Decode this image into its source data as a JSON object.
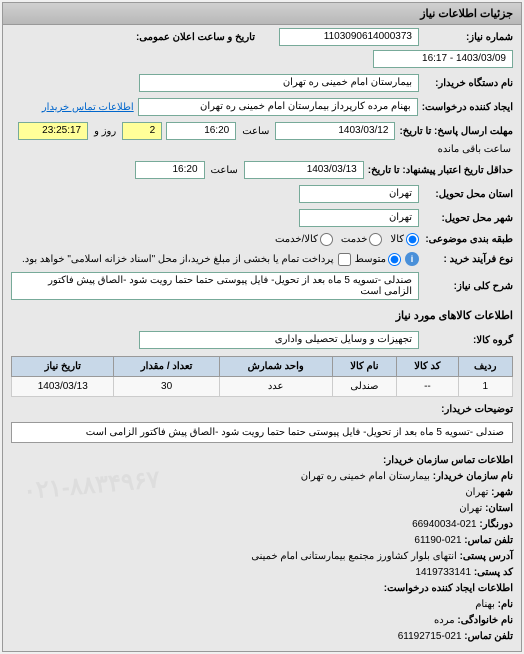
{
  "panel_title": "جزئیات اطلاعات نیاز",
  "request_number": {
    "label": "شماره نیاز:",
    "value": "1103090614000373"
  },
  "announce_datetime": {
    "label": "تاریخ و ساعت اعلان عمومی:",
    "value": "1403/03/09 - 16:17"
  },
  "buyer_org": {
    "label": "نام دستگاه خریدار:",
    "value": "بیمارستان امام خمینی ره تهران"
  },
  "requester": {
    "label": "ایجاد کننده درخواست:",
    "value": "بهنام مرده کارپرداز بیمارستان امام خمینی ره تهران"
  },
  "contact_link": "اطلاعات تماس خریدار",
  "deadline_from": {
    "label": "مهلت ارسال پاسخ: تا تاریخ:",
    "date": "1403/03/12",
    "time_label": "ساعت",
    "time": "16:20"
  },
  "remaining": {
    "days": "2",
    "days_label": "روز و",
    "time": "23:25:17",
    "suffix": "ساعت باقی مانده"
  },
  "deadline_to": {
    "label": "حداقل تاریخ اعتبار پیشنهاد: تا تاریخ:",
    "date": "1403/03/13",
    "time_label": "ساعت",
    "time": "16:20"
  },
  "delivery_province": {
    "label": "استان محل تحویل:",
    "value": "تهران"
  },
  "delivery_city": {
    "label": "شهر محل تحویل:",
    "value": "تهران"
  },
  "category": {
    "label": "طبقه بندی موضوعی:",
    "options": [
      {
        "label": "کالا",
        "checked": true
      },
      {
        "label": "خدمت",
        "checked": false
      },
      {
        "label": "کالا/خدمت",
        "checked": false
      }
    ]
  },
  "process": {
    "label": "نوع فرآیند خرید :",
    "options": [
      {
        "label": "متوسط",
        "checked": true
      }
    ],
    "note": "پرداخت تمام یا بخشی از مبلغ خرید،از محل \"اسناد خزانه اسلامی\" خواهد بود."
  },
  "need_desc": {
    "label": "شرح کلی نیاز:",
    "value": "صندلی -تسویه 5 ماه بعد از تحویل- فایل پیوستی حتما حتما رویت شود -الصاق پیش فاکتور الزامی است"
  },
  "goods_section_title": "اطلاعات کالاهای مورد نیاز",
  "goods_group": {
    "label": "گروه کالا:",
    "value": "تجهیزات و وسایل تحصیلی واداری"
  },
  "table": {
    "headers": [
      "ردیف",
      "کد کالا",
      "نام کالا",
      "واحد شمارش",
      "تعداد / مقدار",
      "تاریخ نیاز"
    ],
    "rows": [
      [
        "1",
        "--",
        "صندلی",
        "عدد",
        "30",
        "1403/03/13"
      ]
    ]
  },
  "buyer_notes": {
    "label": "توضیحات خریدار:",
    "value": "صندلی -تسویه 5 ماه بعد از تحویل- فایل پیوستی حتما حتما رویت شود -الصاق پیش فاکتور الزامی است"
  },
  "contact": {
    "section_title": "اطلاعات تماس سازمان خریدار:",
    "org_label": "نام سازمان خریدار:",
    "org_value": "بیمارستان امام خمینی ره تهران",
    "city_label": "شهر:",
    "city_value": "تهران",
    "province_label": "استان:",
    "province_value": "تهران",
    "prefix_label": "دورنگار:",
    "prefix_value": "021-66940034",
    "phone_label": "تلفن تماس:",
    "phone_value": "021-61190",
    "address_label": "آدرس پستی:",
    "address_value": "انتهای بلوار کشاورز مجتمع بیمارستانی امام خمینی",
    "postal_label": "کد پستی:",
    "postal_value": "1419733141",
    "creator_section": "اطلاعات ایجاد کننده درخواست:",
    "name_label": "نام:",
    "name_value": "بهنام",
    "lname_label": "نام خانوادگی:",
    "lname_value": "مرده",
    "cphone_label": "تلفن تماس:",
    "cphone_value": "021-61192715",
    "watermark": "۰۲۱-۸۸۳۴۹۶۷"
  }
}
